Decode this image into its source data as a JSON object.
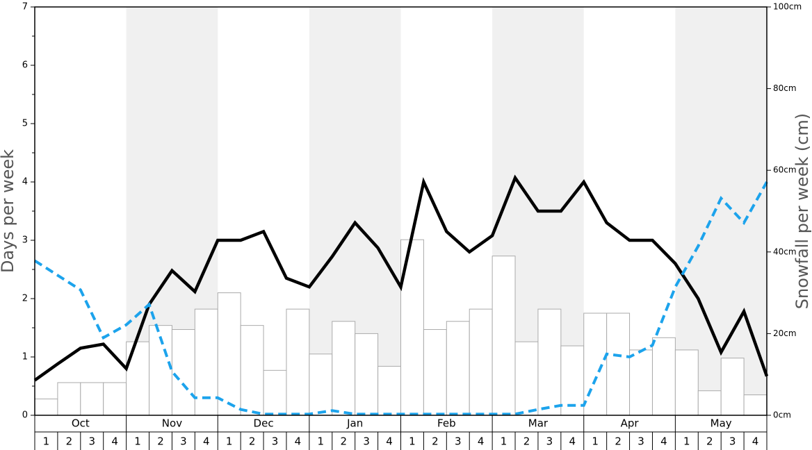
{
  "chart_data": {
    "type": "combo",
    "y_label": "Days per week",
    "y2_label": "Snowfall per week (cm)",
    "months": [
      "Oct",
      "Nov",
      "Dec",
      "Jan",
      "Feb",
      "Mar",
      "Apr",
      "May"
    ],
    "weeks": [
      "1",
      "2",
      "3",
      "4"
    ],
    "ylim": [
      0,
      7
    ],
    "yticks": [
      0,
      1,
      2,
      3,
      4,
      5,
      6,
      7
    ],
    "y2lim": [
      0,
      100
    ],
    "y2ticks": [
      {
        "value": 0,
        "label": "0cm"
      },
      {
        "value": 20,
        "label": "20cm"
      },
      {
        "value": 40,
        "label": "40cm"
      },
      {
        "value": 60,
        "label": "60cm"
      },
      {
        "value": 80,
        "label": "80cm"
      },
      {
        "value": 100,
        "label": "100cm"
      }
    ],
    "series": [
      {
        "type": "bar",
        "axis": "y2",
        "color": "#ffffff",
        "values": [
          4,
          8,
          8,
          8,
          18,
          22,
          21,
          26,
          30,
          22,
          11,
          26,
          15,
          23,
          20,
          12,
          43,
          21,
          23,
          26,
          39,
          18,
          26,
          17,
          25,
          25,
          16,
          19,
          16,
          6,
          14,
          5
        ]
      },
      {
        "type": "line",
        "color": "#000000",
        "dashed": false,
        "values": [
          0.6,
          0.88,
          1.15,
          1.22,
          0.8,
          1.9,
          2.48,
          2.12,
          3.0,
          3.0,
          3.15,
          2.35,
          2.2,
          2.72,
          3.3,
          2.87,
          2.2,
          4.0,
          3.15,
          2.8,
          3.08,
          4.07,
          3.5,
          3.5,
          4.0,
          3.3,
          3.0,
          3.0,
          2.6,
          2.0,
          1.08,
          1.78,
          0.67
        ]
      },
      {
        "type": "line",
        "color": "#1ca3ec",
        "dashed": true,
        "values": [
          2.65,
          2.4,
          2.15,
          1.33,
          1.55,
          1.9,
          0.75,
          0.3,
          0.3,
          0.1,
          0.02,
          0.02,
          0.02,
          0.08,
          0.02,
          0.02,
          0.02,
          0.02,
          0.02,
          0.02,
          0.02,
          0.02,
          0.1,
          0.17,
          0.17,
          1.05,
          1.0,
          1.2,
          2.2,
          2.9,
          3.72,
          3.3,
          4.0
        ]
      }
    ]
  }
}
